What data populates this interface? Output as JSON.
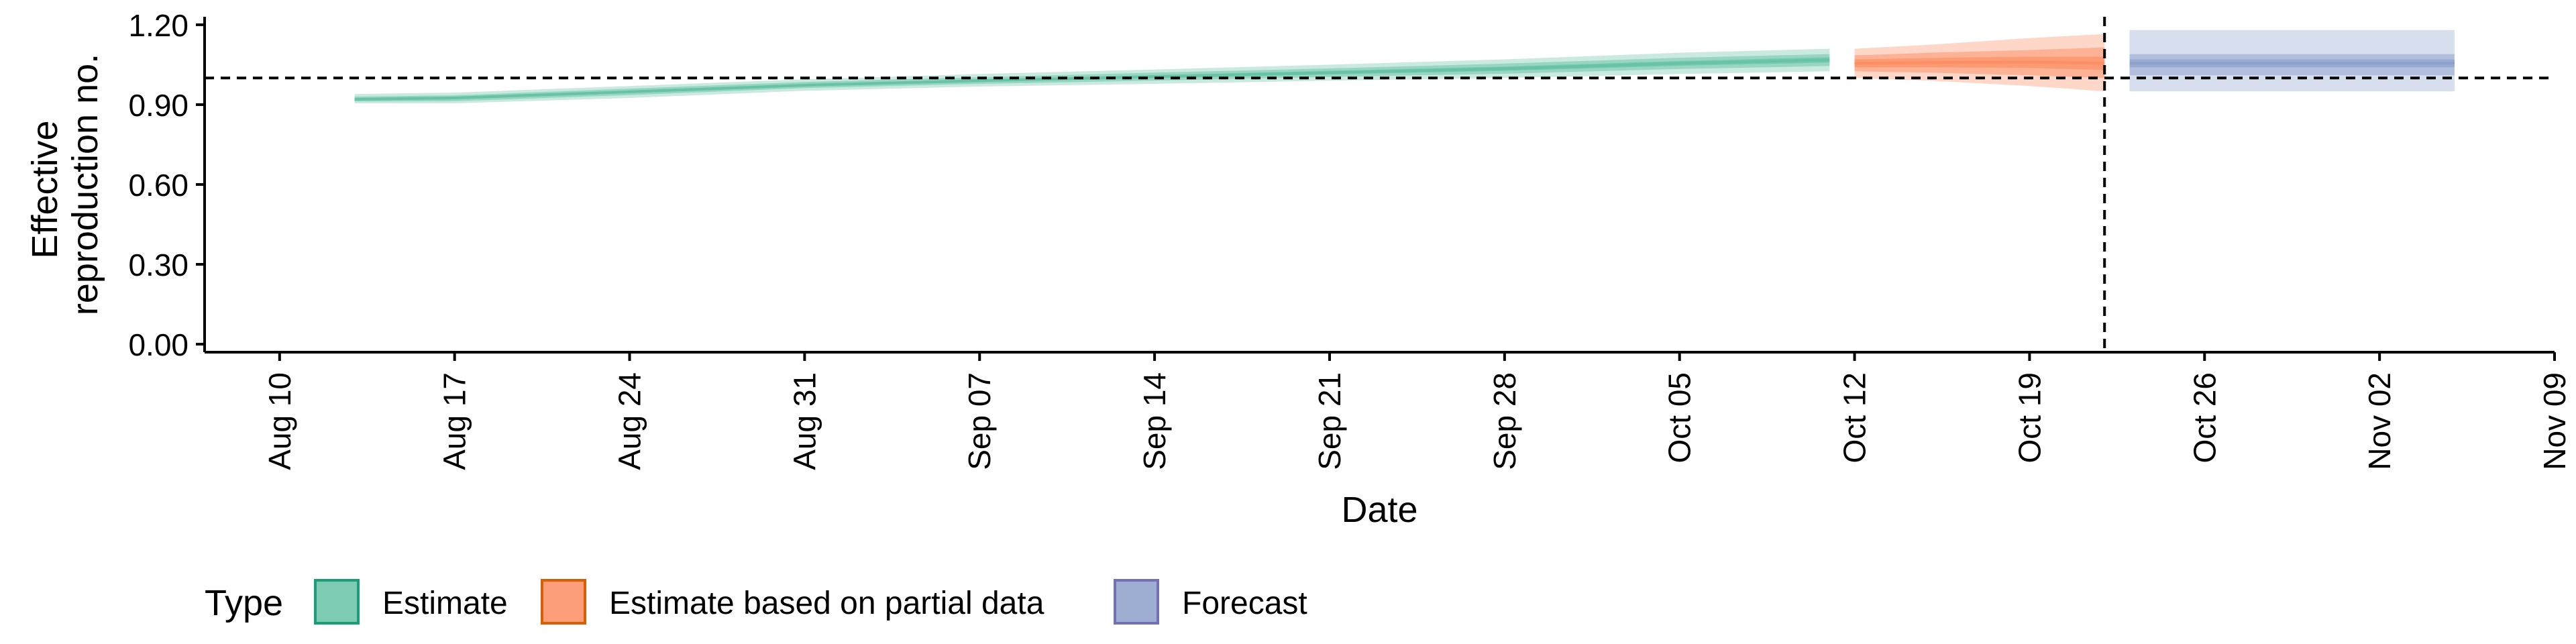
{
  "chart_data": {
    "type": "area",
    "title": "",
    "xlabel": "Date",
    "ylabel_lines": [
      "Effective",
      "reproduction no."
    ],
    "xlim": [
      "2020-08-07",
      "2020-11-09"
    ],
    "ylim": [
      -0.03,
      1.23
    ],
    "x_tick_dates": [
      "2020-08-10",
      "2020-08-17",
      "2020-08-24",
      "2020-08-31",
      "2020-09-07",
      "2020-09-14",
      "2020-09-21",
      "2020-09-28",
      "2020-10-05",
      "2020-10-12",
      "2020-10-19",
      "2020-10-26",
      "2020-11-02",
      "2020-11-09"
    ],
    "x_tick_labels": [
      "Aug 10",
      "Aug 17",
      "Aug 24",
      "Aug 31",
      "Sep 07",
      "Sep 14",
      "Sep 21",
      "Sep 28",
      "Oct 05",
      "Oct 12",
      "Oct 19",
      "Oct 26",
      "Nov 02",
      "Nov 09"
    ],
    "y_ticks": [
      0,
      0.3,
      0.6,
      0.9,
      1.2
    ],
    "y_tick_labels": [
      "0.00",
      "0.30",
      "0.60",
      "0.90",
      "1.20"
    ],
    "reference_hline": 1.0,
    "reference_vline": "2020-10-22",
    "legend": {
      "title": "Type",
      "position": "bottom-left",
      "entries": [
        "Estimate",
        "Estimate based on partial data",
        "Forecast"
      ]
    },
    "series": [
      {
        "name": "Estimate",
        "color": "#1b9e77",
        "fill": "#66c2a5",
        "x": [
          "2020-08-13",
          "2020-08-17",
          "2020-08-24",
          "2020-08-31",
          "2020-09-07",
          "2020-09-14",
          "2020-09-21",
          "2020-09-28",
          "2020-10-05",
          "2020-10-11"
        ],
        "median": [
          0.92,
          0.925,
          0.948,
          0.973,
          0.99,
          1.005,
          1.02,
          1.035,
          1.055,
          1.068
        ],
        "lower_outer": [
          0.905,
          0.905,
          0.925,
          0.952,
          0.968,
          0.978,
          0.99,
          1.0,
          1.015,
          1.025
        ],
        "upper_outer": [
          0.94,
          0.945,
          0.97,
          0.995,
          1.015,
          1.032,
          1.05,
          1.07,
          1.095,
          1.11
        ],
        "lower_mid": [
          0.912,
          0.913,
          0.936,
          0.962,
          0.978,
          0.99,
          1.004,
          1.016,
          1.034,
          1.045
        ],
        "upper_mid": [
          0.93,
          0.935,
          0.96,
          0.985,
          1.003,
          1.02,
          1.036,
          1.054,
          1.076,
          1.09
        ],
        "lower_inner": [
          0.916,
          0.92,
          0.943,
          0.968,
          0.985,
          0.999,
          1.013,
          1.027,
          1.046,
          1.058
        ],
        "upper_inner": [
          0.925,
          0.93,
          0.953,
          0.978,
          0.995,
          1.011,
          1.027,
          1.043,
          1.064,
          1.078
        ]
      },
      {
        "name": "Estimate based on partial data",
        "color": "#d95f02",
        "fill": "#fc8d62",
        "x": [
          "2020-10-12",
          "2020-10-15",
          "2020-10-19",
          "2020-10-22"
        ],
        "median": [
          1.055,
          1.058,
          1.06,
          1.055
        ],
        "lower_outer": [
          1.0,
          0.99,
          0.97,
          0.95
        ],
        "upper_outer": [
          1.11,
          1.125,
          1.15,
          1.165
        ],
        "lower_mid": [
          1.025,
          1.02,
          1.01,
          1.0
        ],
        "upper_mid": [
          1.085,
          1.095,
          1.105,
          1.115
        ],
        "lower_inner": [
          1.04,
          1.04,
          1.038,
          1.03
        ],
        "upper_inner": [
          1.07,
          1.075,
          1.08,
          1.08
        ]
      },
      {
        "name": "Forecast",
        "color": "#7570b3",
        "fill": "#8da0cb",
        "x": [
          "2020-10-23",
          "2020-11-05"
        ],
        "median": [
          1.055,
          1.055
        ],
        "lower_outer": [
          0.95,
          0.95
        ],
        "upper_outer": [
          1.18,
          1.18
        ],
        "lower_mid": [
          1.01,
          1.01
        ],
        "upper_mid": [
          1.09,
          1.09
        ],
        "lower_inner": [
          1.04,
          1.04
        ],
        "upper_inner": [
          1.07,
          1.07
        ]
      }
    ]
  }
}
